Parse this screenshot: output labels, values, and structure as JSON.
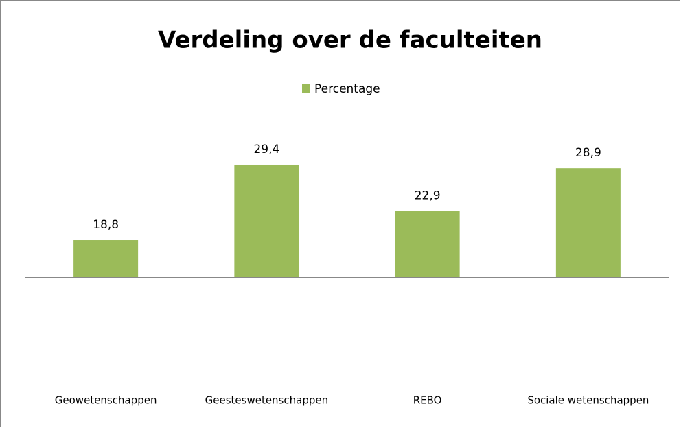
{
  "chart_data": {
    "type": "bar",
    "title": "Verdeling over de faculteiten",
    "categories": [
      "Geowetenschappen",
      "Geesteswetenschappen",
      "REBO",
      "Sociale wetenschappen"
    ],
    "series": [
      {
        "name": "Percentage",
        "color": "#9bbb59",
        "values": [
          18.8,
          29.4,
          22.9,
          28.9
        ],
        "value_labels": [
          "18,8",
          "29,4",
          "22,9",
          "28,9"
        ]
      }
    ],
    "ylim": [
      13.6,
      32
    ],
    "legend": "top"
  }
}
